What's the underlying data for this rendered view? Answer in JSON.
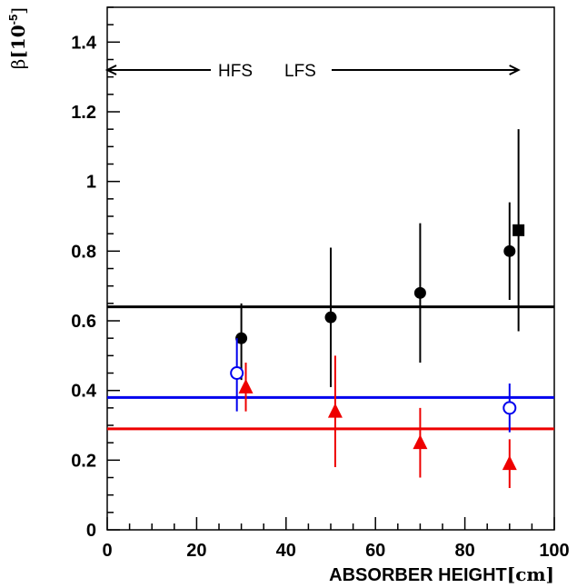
{
  "chart_data": {
    "type": "scatter",
    "title": "",
    "xlabel": "ABSORBER HEIGHT",
    "xunit": "[cm]",
    "ylabel_symbol": "β",
    "ylabel_unit_base": "[10",
    "ylabel_unit_exp": "-5",
    "ylabel_unit_close": "]",
    "xlim": [
      0,
      100
    ],
    "ylim": [
      0,
      1.5
    ],
    "x_ticks": [
      "0",
      "20",
      "40",
      "60",
      "80",
      "100"
    ],
    "y_ticks": [
      "0",
      "0.2",
      "0.4",
      "0.6",
      "0.8",
      "1",
      "1.2",
      "1.4"
    ],
    "grid": false,
    "annotations": {
      "left": "HFS",
      "right": "LFS",
      "y": 1.32,
      "arrow_x_left": 0,
      "arrow_x_right": 92
    },
    "series": [
      {
        "marker": "filled-circle",
        "color": "#000000",
        "points": [
          {
            "x": 30,
            "y": 0.55,
            "err_lo": 0.43,
            "err_hi": 0.65
          },
          {
            "x": 50,
            "y": 0.61,
            "err_lo": 0.41,
            "err_hi": 0.81
          },
          {
            "x": 70,
            "y": 0.68,
            "err_lo": 0.48,
            "err_hi": 0.88
          },
          {
            "x": 90,
            "y": 0.8,
            "err_lo": 0.66,
            "err_hi": 0.94
          }
        ]
      },
      {
        "marker": "filled-square",
        "color": "#000000",
        "points": [
          {
            "x": 92,
            "y": 0.86,
            "err_lo": 0.57,
            "err_hi": 1.15
          }
        ]
      },
      {
        "marker": "open-circle",
        "color": "#0000ee",
        "points": [
          {
            "x": 29,
            "y": 0.45,
            "err_lo": 0.34,
            "err_hi": 0.55
          },
          {
            "x": 90,
            "y": 0.35,
            "err_lo": 0.28,
            "err_hi": 0.42
          }
        ]
      },
      {
        "marker": "filled-triangle",
        "color": "#ee0000",
        "points": [
          {
            "x": 31,
            "y": 0.41,
            "err_lo": 0.34,
            "err_hi": 0.48
          },
          {
            "x": 51,
            "y": 0.34,
            "err_lo": 0.18,
            "err_hi": 0.5
          },
          {
            "x": 70,
            "y": 0.25,
            "err_lo": 0.15,
            "err_hi": 0.35
          },
          {
            "x": 90,
            "y": 0.19,
            "err_lo": 0.12,
            "err_hi": 0.26
          }
        ]
      }
    ],
    "hlines": [
      {
        "y": 0.64,
        "color": "#000000"
      },
      {
        "y": 0.38,
        "color": "#0000ee"
      },
      {
        "y": 0.29,
        "color": "#ee0000"
      }
    ]
  }
}
